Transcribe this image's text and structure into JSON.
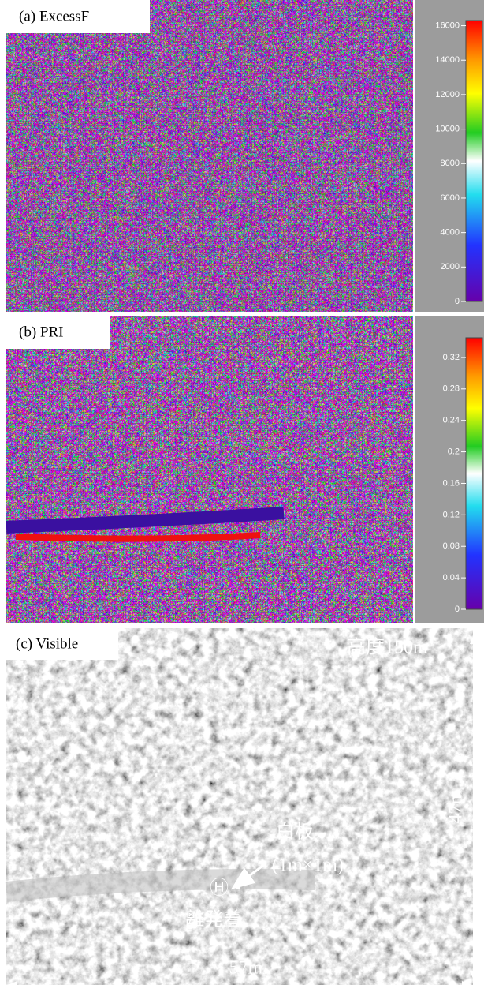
{
  "panels": [
    {
      "label": "(a) ExcessF",
      "colorbar": {
        "lim": [
          0,
          16300
        ],
        "ticks": [
          0,
          2000,
          4000,
          6000,
          8000,
          10000,
          12000,
          14000,
          16000
        ]
      }
    },
    {
      "label": "(b) PRI",
      "colorbar": {
        "lim": [
          0,
          0.345
        ],
        "ticks": [
          0,
          0.04,
          0.08,
          0.12,
          0.16,
          0.2,
          0.24,
          0.28,
          0.32
        ]
      }
    },
    {
      "label": "(c) Visible",
      "annotations": {
        "altitude": "高度150m",
        "height": "47m",
        "width": "57m",
        "panel": "白板",
        "panel_size": "(1m×1m)",
        "helipad_symbol": "Ⓗ",
        "helipad": "離発着"
      }
    }
  ]
}
